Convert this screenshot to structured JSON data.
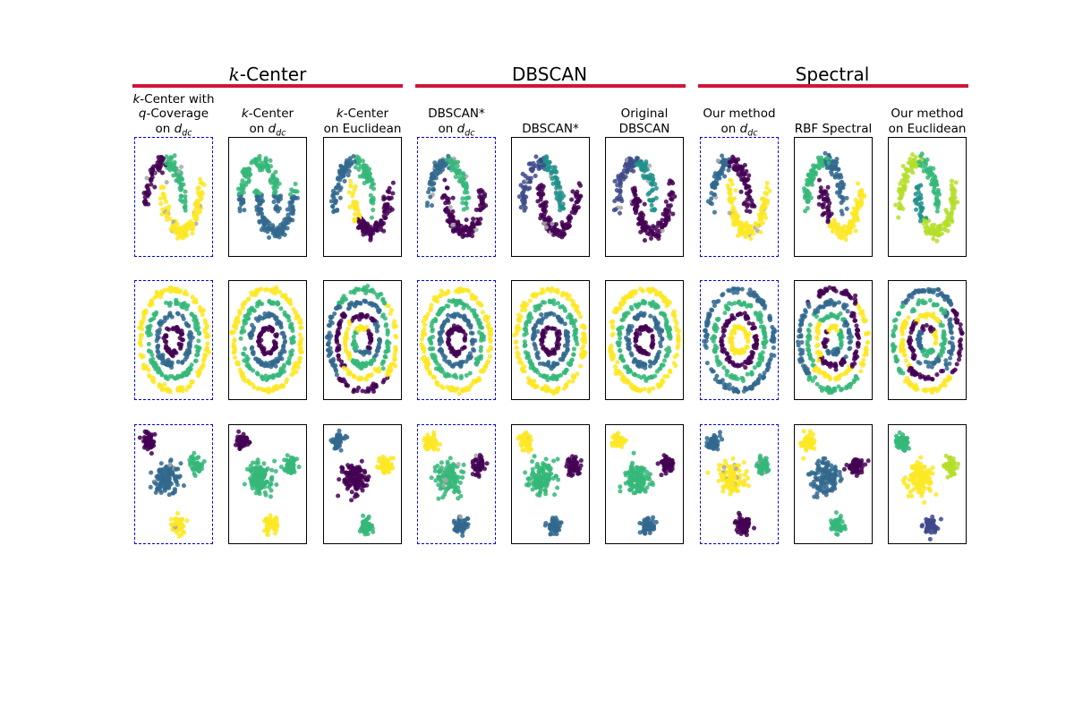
{
  "colors": {
    "cluster_palette": [
      "#440154",
      "#31688e",
      "#35b779",
      "#fde725",
      "#3e4989",
      "#21918c",
      "#b5de2b"
    ],
    "noise": "#a8a8a8",
    "group_bar": "#d0163a",
    "selected_border": "#0000dd"
  },
  "groups": [
    {
      "prefix": "k",
      "title": "-Center"
    },
    {
      "prefix": "",
      "title": "DBSCAN"
    },
    {
      "prefix": "",
      "title": "Spectral"
    }
  ],
  "columns": [
    {
      "lines": [
        {
          "parts": [
            {
              "t": "k",
              "i": true
            },
            {
              "t": "-Center with"
            }
          ]
        },
        {
          "parts": [
            {
              "t": "q",
              "i": true
            },
            {
              "t": "-Coverage"
            }
          ]
        },
        {
          "parts": [
            {
              "t": "on "
            },
            {
              "t": "d",
              "i": true
            },
            {
              "t": "dc",
              "sub": true
            }
          ]
        }
      ],
      "selected": true
    },
    {
      "lines": [
        {
          "parts": [
            {
              "t": "k",
              "i": true
            },
            {
              "t": "-Center"
            }
          ]
        },
        {
          "parts": [
            {
              "t": "on "
            },
            {
              "t": "d",
              "i": true
            },
            {
              "t": "dc",
              "sub": true
            }
          ]
        }
      ],
      "selected": false
    },
    {
      "lines": [
        {
          "parts": [
            {
              "t": "k",
              "i": true
            },
            {
              "t": "-Center"
            }
          ]
        },
        {
          "parts": [
            {
              "t": "on Euclidean"
            }
          ]
        }
      ],
      "selected": false
    },
    {
      "lines": [
        {
          "parts": [
            {
              "t": "DBSCAN*"
            }
          ]
        },
        {
          "parts": [
            {
              "t": "on "
            },
            {
              "t": "d",
              "i": true
            },
            {
              "t": "dc",
              "sub": true
            }
          ]
        }
      ],
      "selected": true
    },
    {
      "lines": [
        {
          "parts": [
            {
              "t": "DBSCAN*"
            }
          ]
        }
      ],
      "selected": false
    },
    {
      "lines": [
        {
          "parts": [
            {
              "t": "Original"
            }
          ]
        },
        {
          "parts": [
            {
              "t": "DBSCAN"
            }
          ]
        }
      ],
      "selected": false
    },
    {
      "lines": [
        {
          "parts": [
            {
              "t": "Our method"
            }
          ]
        },
        {
          "parts": [
            {
              "t": "on "
            },
            {
              "t": "d",
              "i": true
            },
            {
              "t": "dc",
              "sub": true
            }
          ]
        }
      ],
      "selected": true
    },
    {
      "lines": [
        {
          "parts": [
            {
              "t": "RBF Spectral"
            }
          ]
        }
      ],
      "selected": false
    },
    {
      "lines": [
        {
          "parts": [
            {
              "t": "Our method"
            }
          ]
        },
        {
          "parts": [
            {
              "t": "on Euclidean"
            }
          ]
        }
      ],
      "selected": false
    }
  ],
  "rows": [
    {
      "dataset": "moons",
      "panels": [
        {
          "rule": "moons_split",
          "a": 0,
          "b": 2,
          "c": 3,
          "noise": 0.07
        },
        {
          "rule": "moons_lr",
          "a": 2,
          "b": 1
        },
        {
          "rule": "moons_split",
          "a": 1,
          "b": 2,
          "c": 0,
          "d": 3
        },
        {
          "rule": "moons_split",
          "a": 1,
          "b": 2,
          "c": 0,
          "noise": 0.06
        },
        {
          "rule": "moons_split",
          "a": 4,
          "b": 5,
          "c": 0,
          "noise": 0.06
        },
        {
          "rule": "moons_split",
          "a": 4,
          "b": 5,
          "c": 0,
          "noise": 0.04
        },
        {
          "rule": "moons_split",
          "a": 1,
          "b": 0,
          "c": 3,
          "noise": 0.05
        },
        {
          "rule": "moons_split",
          "a": 2,
          "b": 1,
          "c": 3,
          "d": 0
        },
        {
          "rule": "moons_split",
          "a": 6,
          "b": 2,
          "c": 6,
          "d": 5
        }
      ]
    },
    {
      "dataset": "rings",
      "panels": [
        {
          "rule": "rings",
          "map": [
            0,
            1,
            2,
            3
          ]
        },
        {
          "rule": "rings",
          "map": [
            0,
            1,
            2,
            3
          ]
        },
        {
          "rule": "rings_angle",
          "map": [
            0,
            1,
            2,
            3
          ]
        },
        {
          "rule": "rings",
          "map": [
            0,
            1,
            2,
            3
          ]
        },
        {
          "rule": "rings",
          "map": [
            0,
            1,
            2,
            3
          ]
        },
        {
          "rule": "rings",
          "map": [
            0,
            1,
            2,
            3
          ]
        },
        {
          "rule": "rings",
          "map": [
            3,
            0,
            2,
            1
          ]
        },
        {
          "rule": "rings_angle",
          "map": [
            2,
            1,
            0,
            3
          ]
        },
        {
          "rule": "rings_angle",
          "map": [
            3,
            2,
            1,
            0
          ]
        }
      ]
    },
    {
      "dataset": "blobs",
      "panels": [
        {
          "rule": "blobs",
          "map": [
            0,
            1,
            2,
            3
          ],
          "noise": 0.06
        },
        {
          "rule": "blobs",
          "map": [
            0,
            2,
            2,
            3
          ]
        },
        {
          "rule": "blobs",
          "map": [
            1,
            0,
            3,
            2
          ]
        },
        {
          "rule": "blobs",
          "map": [
            3,
            2,
            0,
            1
          ],
          "noise": 0.04
        },
        {
          "rule": "blobs",
          "map": [
            3,
            2,
            0,
            1
          ],
          "noise": 0.03
        },
        {
          "rule": "blobs",
          "map": [
            3,
            2,
            0,
            1
          ]
        },
        {
          "rule": "blobs",
          "map": [
            1,
            3,
            2,
            0
          ],
          "noise": 0.06
        },
        {
          "rule": "blobs",
          "map": [
            3,
            1,
            0,
            2
          ]
        },
        {
          "rule": "blobs",
          "map": [
            2,
            3,
            6,
            4
          ]
        }
      ]
    }
  ]
}
